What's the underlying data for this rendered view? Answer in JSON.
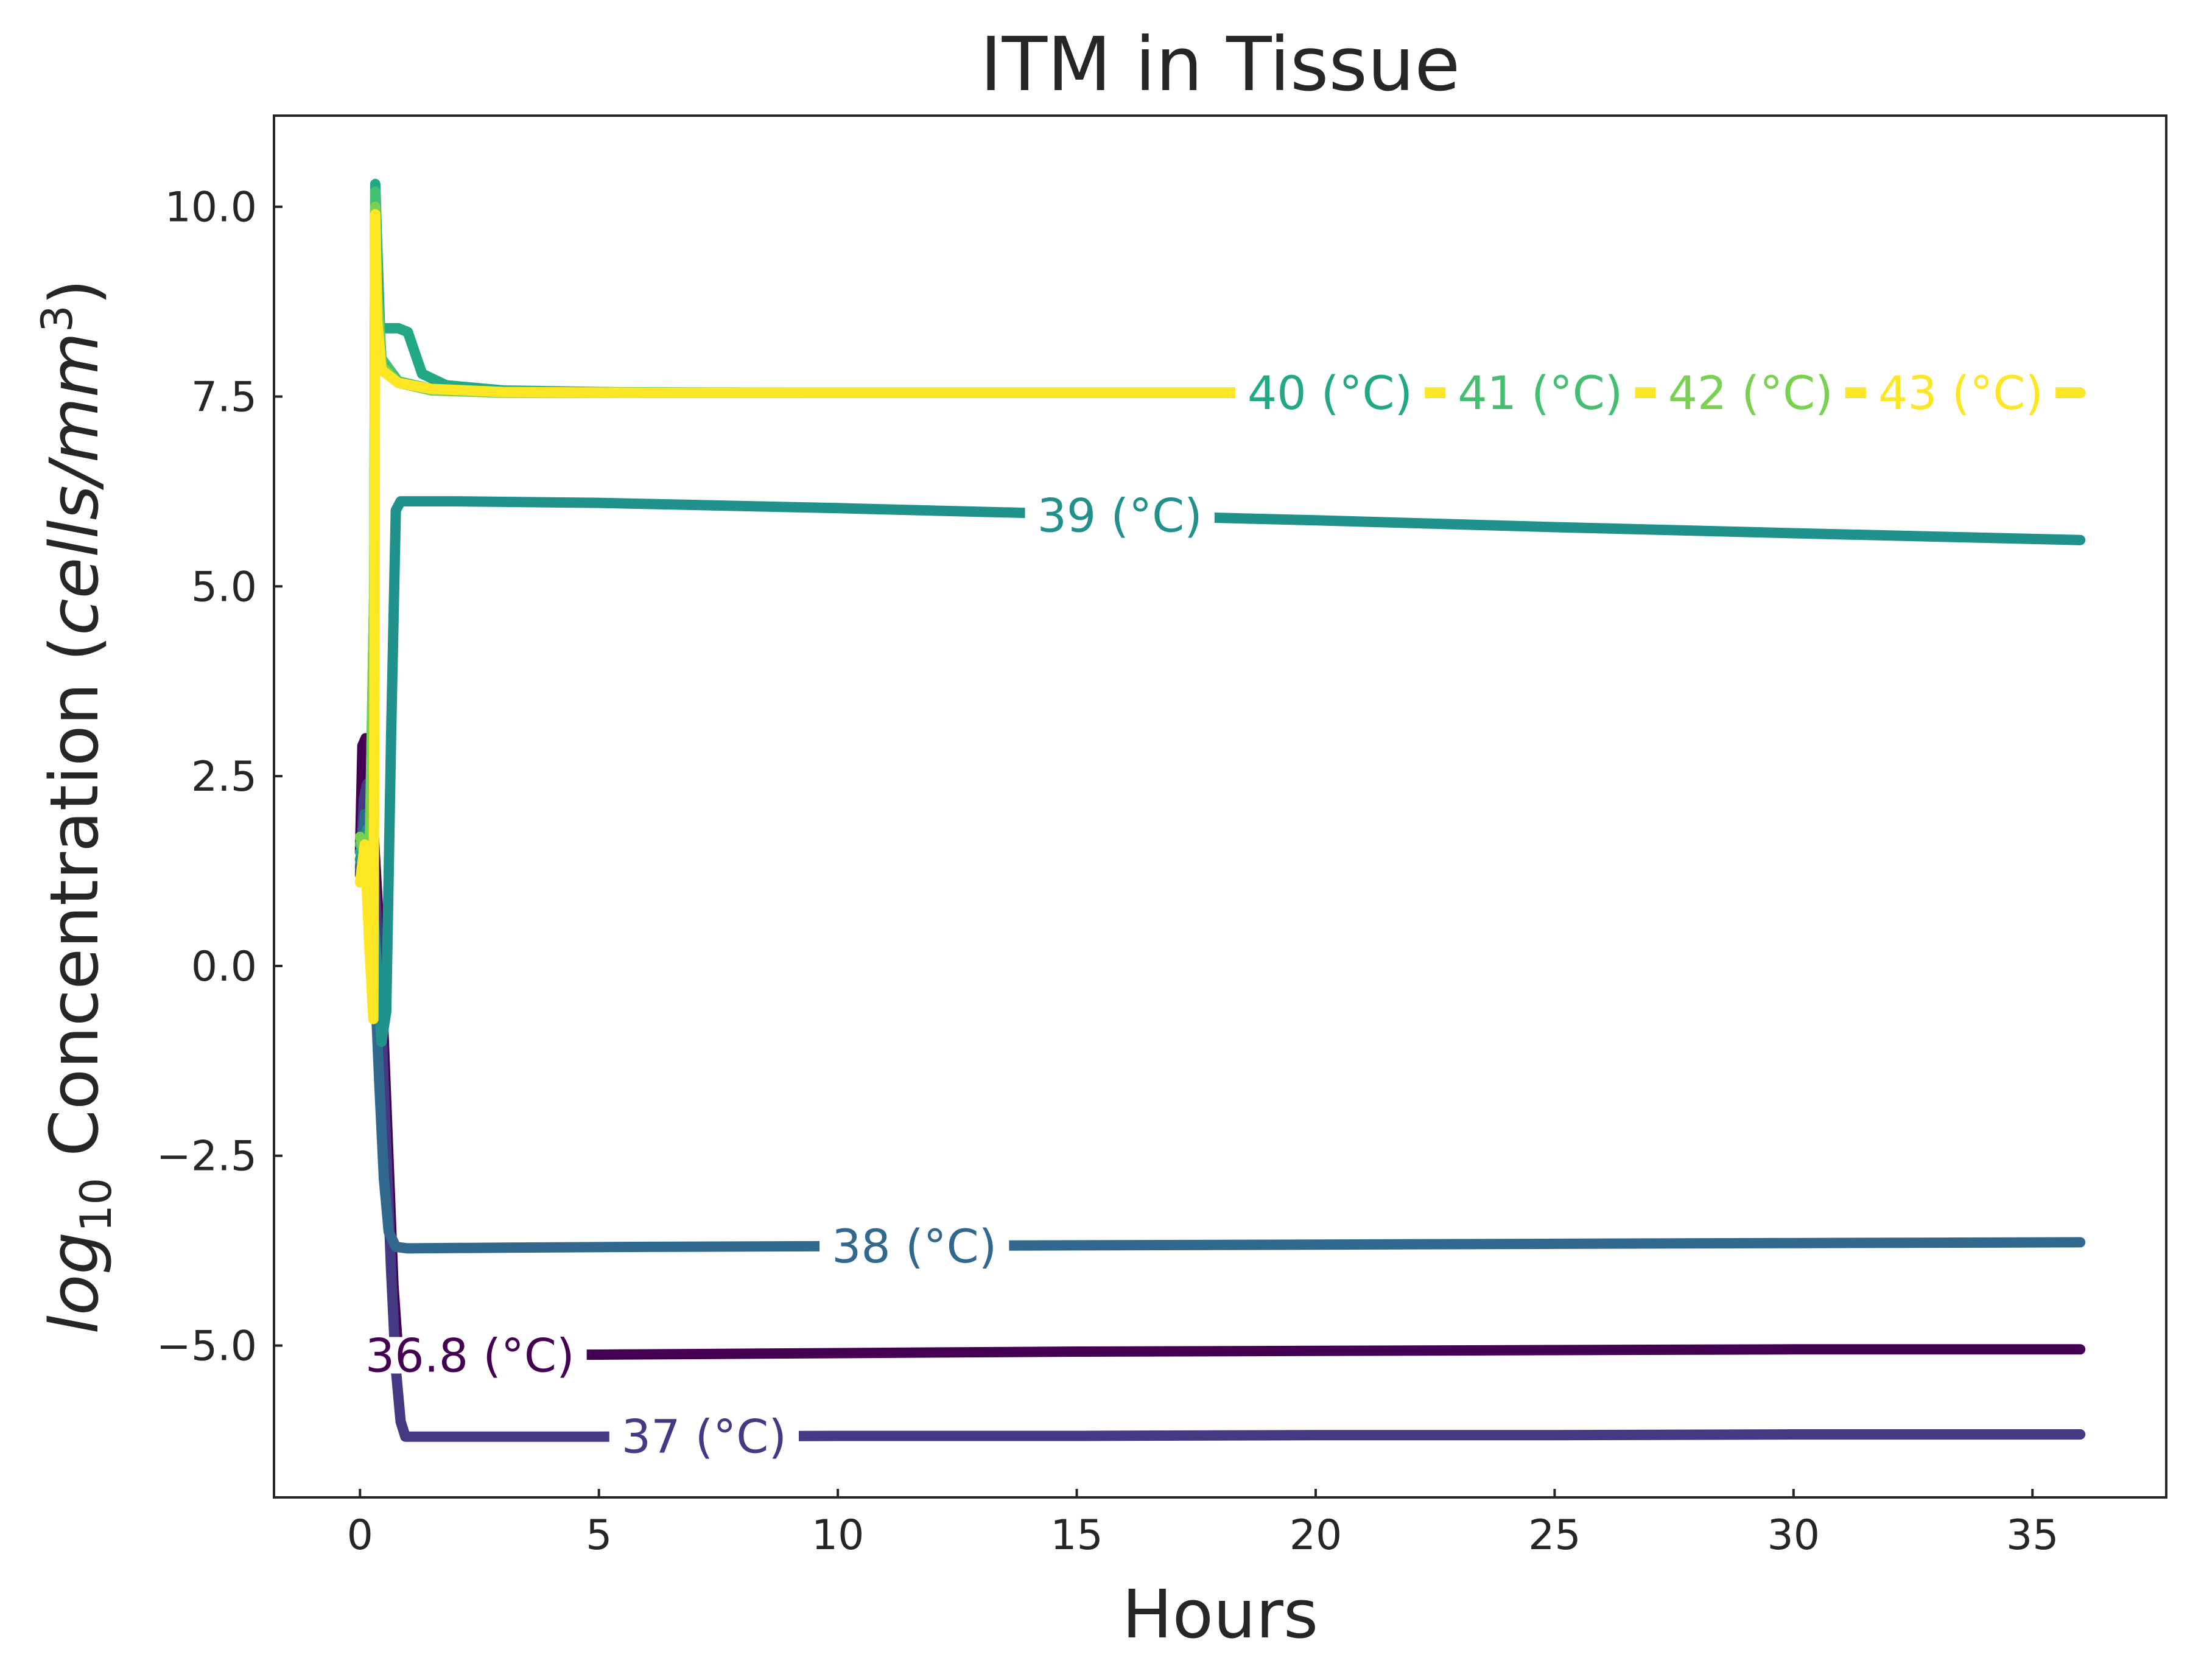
{
  "chart_data": {
    "type": "line",
    "title": "ITM in Tissue",
    "xlabel": "Hours",
    "ylabel": {
      "prefix": "log",
      "sub": "10",
      "mid": " Concentration (",
      "unit": "cells/mm",
      "sup": "3",
      "suffix": ")"
    },
    "xlim": [
      -1.8,
      37.8
    ],
    "ylim": [
      -7.0,
      11.2
    ],
    "x_ticks": [
      0,
      5,
      10,
      15,
      20,
      25,
      30,
      35
    ],
    "x_tick_labels": [
      "0",
      "5",
      "10",
      "15",
      "20",
      "25",
      "30",
      "35"
    ],
    "y_ticks": [
      -5.0,
      -2.5,
      0.0,
      2.5,
      5.0,
      7.5,
      10.0
    ],
    "y_tick_labels": [
      "−5.0",
      "−2.5",
      "0.0",
      "2.5",
      "5.0",
      "7.5",
      "10.0"
    ],
    "grid": false,
    "legend": "inline labels on lines",
    "series": [
      {
        "name": "36.8 (°C)",
        "color": "#440154",
        "label_x": 2.3,
        "points": [
          [
            0,
            1.5
          ],
          [
            0.05,
            2.9
          ],
          [
            0.12,
            3.0
          ],
          [
            0.2,
            2.6
          ],
          [
            0.3,
            1.6
          ],
          [
            0.4,
            0.5
          ],
          [
            0.5,
            -1.0
          ],
          [
            0.6,
            -2.6
          ],
          [
            0.7,
            -4.2
          ],
          [
            0.8,
            -5.1
          ],
          [
            0.9,
            -5.15
          ],
          [
            1.5,
            -5.13
          ],
          [
            5,
            -5.12
          ],
          [
            10,
            -5.1
          ],
          [
            15,
            -5.08
          ],
          [
            20,
            -5.07
          ],
          [
            25,
            -5.06
          ],
          [
            30,
            -5.05
          ],
          [
            36,
            -5.05
          ]
        ]
      },
      {
        "name": "37 (°C)",
        "color": "#443983",
        "label_x": 7.2,
        "points": [
          [
            0,
            1.2
          ],
          [
            0.08,
            2.2
          ],
          [
            0.15,
            2.4
          ],
          [
            0.25,
            1.8
          ],
          [
            0.35,
            0.6
          ],
          [
            0.45,
            -0.8
          ],
          [
            0.55,
            -2.4
          ],
          [
            0.65,
            -4.0
          ],
          [
            0.75,
            -5.3
          ],
          [
            0.85,
            -6.0
          ],
          [
            0.95,
            -6.2
          ],
          [
            1.5,
            -6.2
          ],
          [
            5,
            -6.2
          ],
          [
            10,
            -6.19
          ],
          [
            15,
            -6.19
          ],
          [
            20,
            -6.18
          ],
          [
            25,
            -6.18
          ],
          [
            30,
            -6.17
          ],
          [
            36,
            -6.17
          ]
        ]
      },
      {
        "name": "38 (°C)",
        "color": "#31688e",
        "label_x": 11.6,
        "points": [
          [
            0,
            1.3
          ],
          [
            0.1,
            2.0
          ],
          [
            0.2,
            1.4
          ],
          [
            0.3,
            0.0
          ],
          [
            0.4,
            -1.5
          ],
          [
            0.5,
            -2.8
          ],
          [
            0.6,
            -3.5
          ],
          [
            0.75,
            -3.7
          ],
          [
            1.0,
            -3.72
          ],
          [
            3,
            -3.71
          ],
          [
            6,
            -3.7
          ],
          [
            10,
            -3.69
          ],
          [
            15,
            -3.68
          ],
          [
            20,
            -3.67
          ],
          [
            25,
            -3.66
          ],
          [
            30,
            -3.65
          ],
          [
            36,
            -3.64
          ]
        ]
      },
      {
        "name": "39 (°C)",
        "color": "#21918c",
        "label_x": 15.9,
        "points": [
          [
            0,
            1.4
          ],
          [
            0.15,
            1.8
          ],
          [
            0.3,
            0.5
          ],
          [
            0.45,
            -1.0
          ],
          [
            0.55,
            -0.6
          ],
          [
            0.65,
            3.0
          ],
          [
            0.75,
            6.0
          ],
          [
            0.85,
            6.12
          ],
          [
            2,
            6.12
          ],
          [
            5,
            6.1
          ],
          [
            10,
            6.03
          ],
          [
            15,
            5.95
          ],
          [
            20,
            5.87
          ],
          [
            25,
            5.78
          ],
          [
            30,
            5.7
          ],
          [
            36,
            5.61
          ]
        ]
      },
      {
        "name": "40 (°C)",
        "color": "#22a884",
        "label_x": 20.3,
        "points": [
          [
            0,
            1.5
          ],
          [
            0.2,
            1.5
          ],
          [
            0.3,
            5.0
          ],
          [
            0.32,
            10.3
          ],
          [
            0.36,
            9.5
          ],
          [
            0.42,
            8.4
          ],
          [
            0.8,
            8.4
          ],
          [
            1.0,
            8.35
          ],
          [
            1.3,
            7.8
          ],
          [
            1.8,
            7.65
          ],
          [
            3,
            7.58
          ],
          [
            6,
            7.55
          ],
          [
            10,
            7.55
          ],
          [
            20,
            7.55
          ],
          [
            30,
            7.55
          ],
          [
            36,
            7.55
          ]
        ]
      },
      {
        "name": "41 (°C)",
        "color": "#44bf70",
        "label_x": 24.7,
        "points": [
          [
            0,
            1.6
          ],
          [
            0.2,
            1.4
          ],
          [
            0.3,
            5.0
          ],
          [
            0.32,
            10.2
          ],
          [
            0.36,
            9.0
          ],
          [
            0.45,
            8.0
          ],
          [
            0.8,
            7.7
          ],
          [
            1.5,
            7.6
          ],
          [
            3,
            7.56
          ],
          [
            10,
            7.55
          ],
          [
            20,
            7.55
          ],
          [
            36,
            7.55
          ]
        ]
      },
      {
        "name": "42 (°C)",
        "color": "#7ad151",
        "label_x": 29.1,
        "points": [
          [
            0,
            1.7
          ],
          [
            0.2,
            1.3
          ],
          [
            0.3,
            5.0
          ],
          [
            0.32,
            10.0
          ],
          [
            0.36,
            8.8
          ],
          [
            0.45,
            7.9
          ],
          [
            0.8,
            7.68
          ],
          [
            1.5,
            7.58
          ],
          [
            3,
            7.55
          ],
          [
            10,
            7.55
          ],
          [
            20,
            7.55
          ],
          [
            36,
            7.55
          ]
        ]
      },
      {
        "name": "43 (°C)",
        "color": "#fde725",
        "label_x": 33.5,
        "points": [
          [
            0,
            1.1
          ],
          [
            0.1,
            1.6
          ],
          [
            0.2,
            0.2
          ],
          [
            0.28,
            -0.7
          ],
          [
            0.3,
            3.0
          ],
          [
            0.32,
            9.9
          ],
          [
            0.36,
            8.5
          ],
          [
            0.45,
            7.85
          ],
          [
            0.8,
            7.68
          ],
          [
            1.5,
            7.6
          ],
          [
            3,
            7.56
          ],
          [
            6,
            7.55
          ],
          [
            10,
            7.55
          ],
          [
            20,
            7.55
          ],
          [
            30,
            7.55
          ],
          [
            36,
            7.55
          ]
        ]
      }
    ]
  }
}
